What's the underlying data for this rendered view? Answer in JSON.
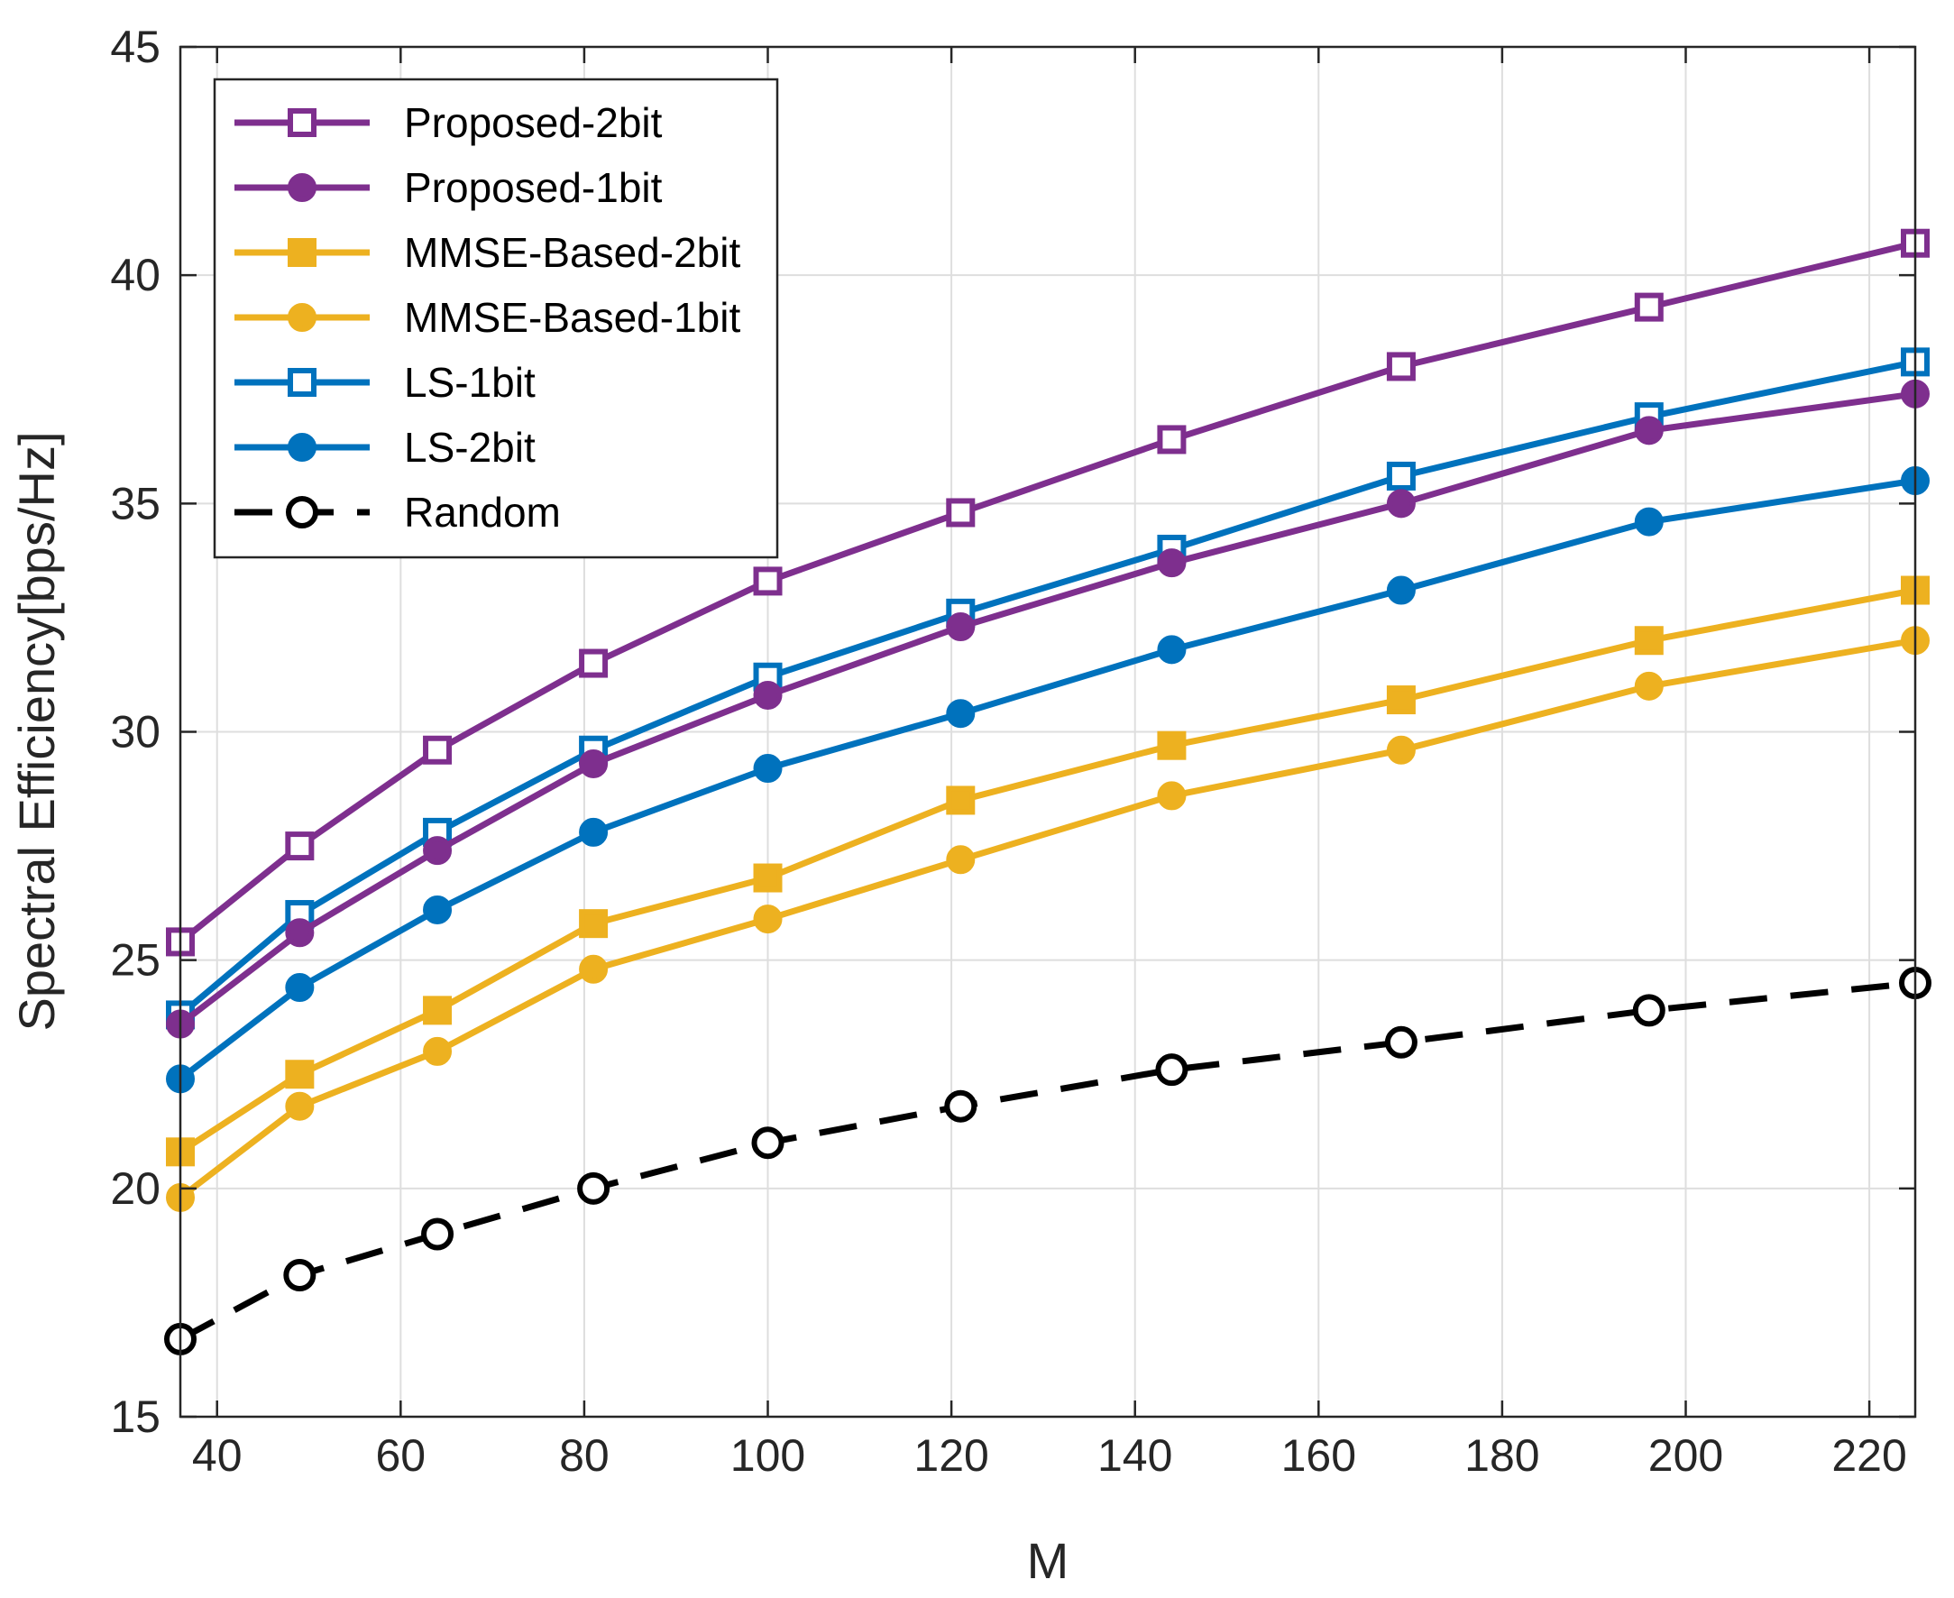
{
  "chart_data": {
    "type": "line",
    "title": "",
    "xlabel": "M",
    "ylabel": "Spectral Efficiency[bps/Hz]",
    "xlim": [
      36,
      225
    ],
    "ylim": [
      15,
      45
    ],
    "xticks": [
      40,
      60,
      80,
      100,
      120,
      140,
      160,
      180,
      200,
      220
    ],
    "yticks": [
      15,
      20,
      25,
      30,
      35,
      40,
      45
    ],
    "grid": true,
    "legend_position": "top-left",
    "x": [
      36,
      49,
      64,
      81,
      100,
      121,
      144,
      169,
      196,
      225
    ],
    "series": [
      {
        "name": "Proposed-2bit",
        "color": "#7e2f8e",
        "marker": "square-open",
        "dash": "solid",
        "values": [
          25.4,
          27.5,
          29.6,
          31.5,
          33.3,
          34.8,
          36.4,
          38.0,
          39.3,
          40.7
        ]
      },
      {
        "name": "Proposed-1bit",
        "color": "#7e2f8e",
        "marker": "circle-filled",
        "dash": "solid",
        "values": [
          23.6,
          25.6,
          27.4,
          29.3,
          30.8,
          32.3,
          33.7,
          35.0,
          36.6,
          37.4
        ]
      },
      {
        "name": "MMSE-Based-2bit",
        "color": "#edb120",
        "marker": "square-filled",
        "dash": "solid",
        "values": [
          20.8,
          22.5,
          23.9,
          25.8,
          26.8,
          28.5,
          29.7,
          30.7,
          32.0,
          33.1
        ]
      },
      {
        "name": "MMSE-Based-1bit",
        "color": "#edb120",
        "marker": "circle-filled",
        "dash": "solid",
        "values": [
          19.8,
          21.8,
          23.0,
          24.8,
          25.9,
          27.2,
          28.6,
          29.6,
          31.0,
          32.0
        ]
      },
      {
        "name": "LS-1bit",
        "color": "#0072bd",
        "marker": "square-open",
        "dash": "solid",
        "values": [
          23.8,
          26.0,
          27.8,
          29.6,
          31.2,
          32.6,
          34.0,
          35.6,
          36.9,
          38.1
        ]
      },
      {
        "name": "LS-2bit",
        "color": "#0072bd",
        "marker": "circle-filled",
        "dash": "solid",
        "values": [
          22.4,
          24.4,
          26.1,
          27.8,
          29.2,
          30.4,
          31.8,
          33.1,
          34.6,
          35.5
        ]
      },
      {
        "name": "Random",
        "color": "#000000",
        "marker": "circle-open",
        "dash": "dashed",
        "values": [
          16.7,
          18.1,
          19.0,
          20.0,
          21.0,
          21.8,
          22.6,
          23.2,
          23.9,
          24.5
        ]
      }
    ]
  }
}
